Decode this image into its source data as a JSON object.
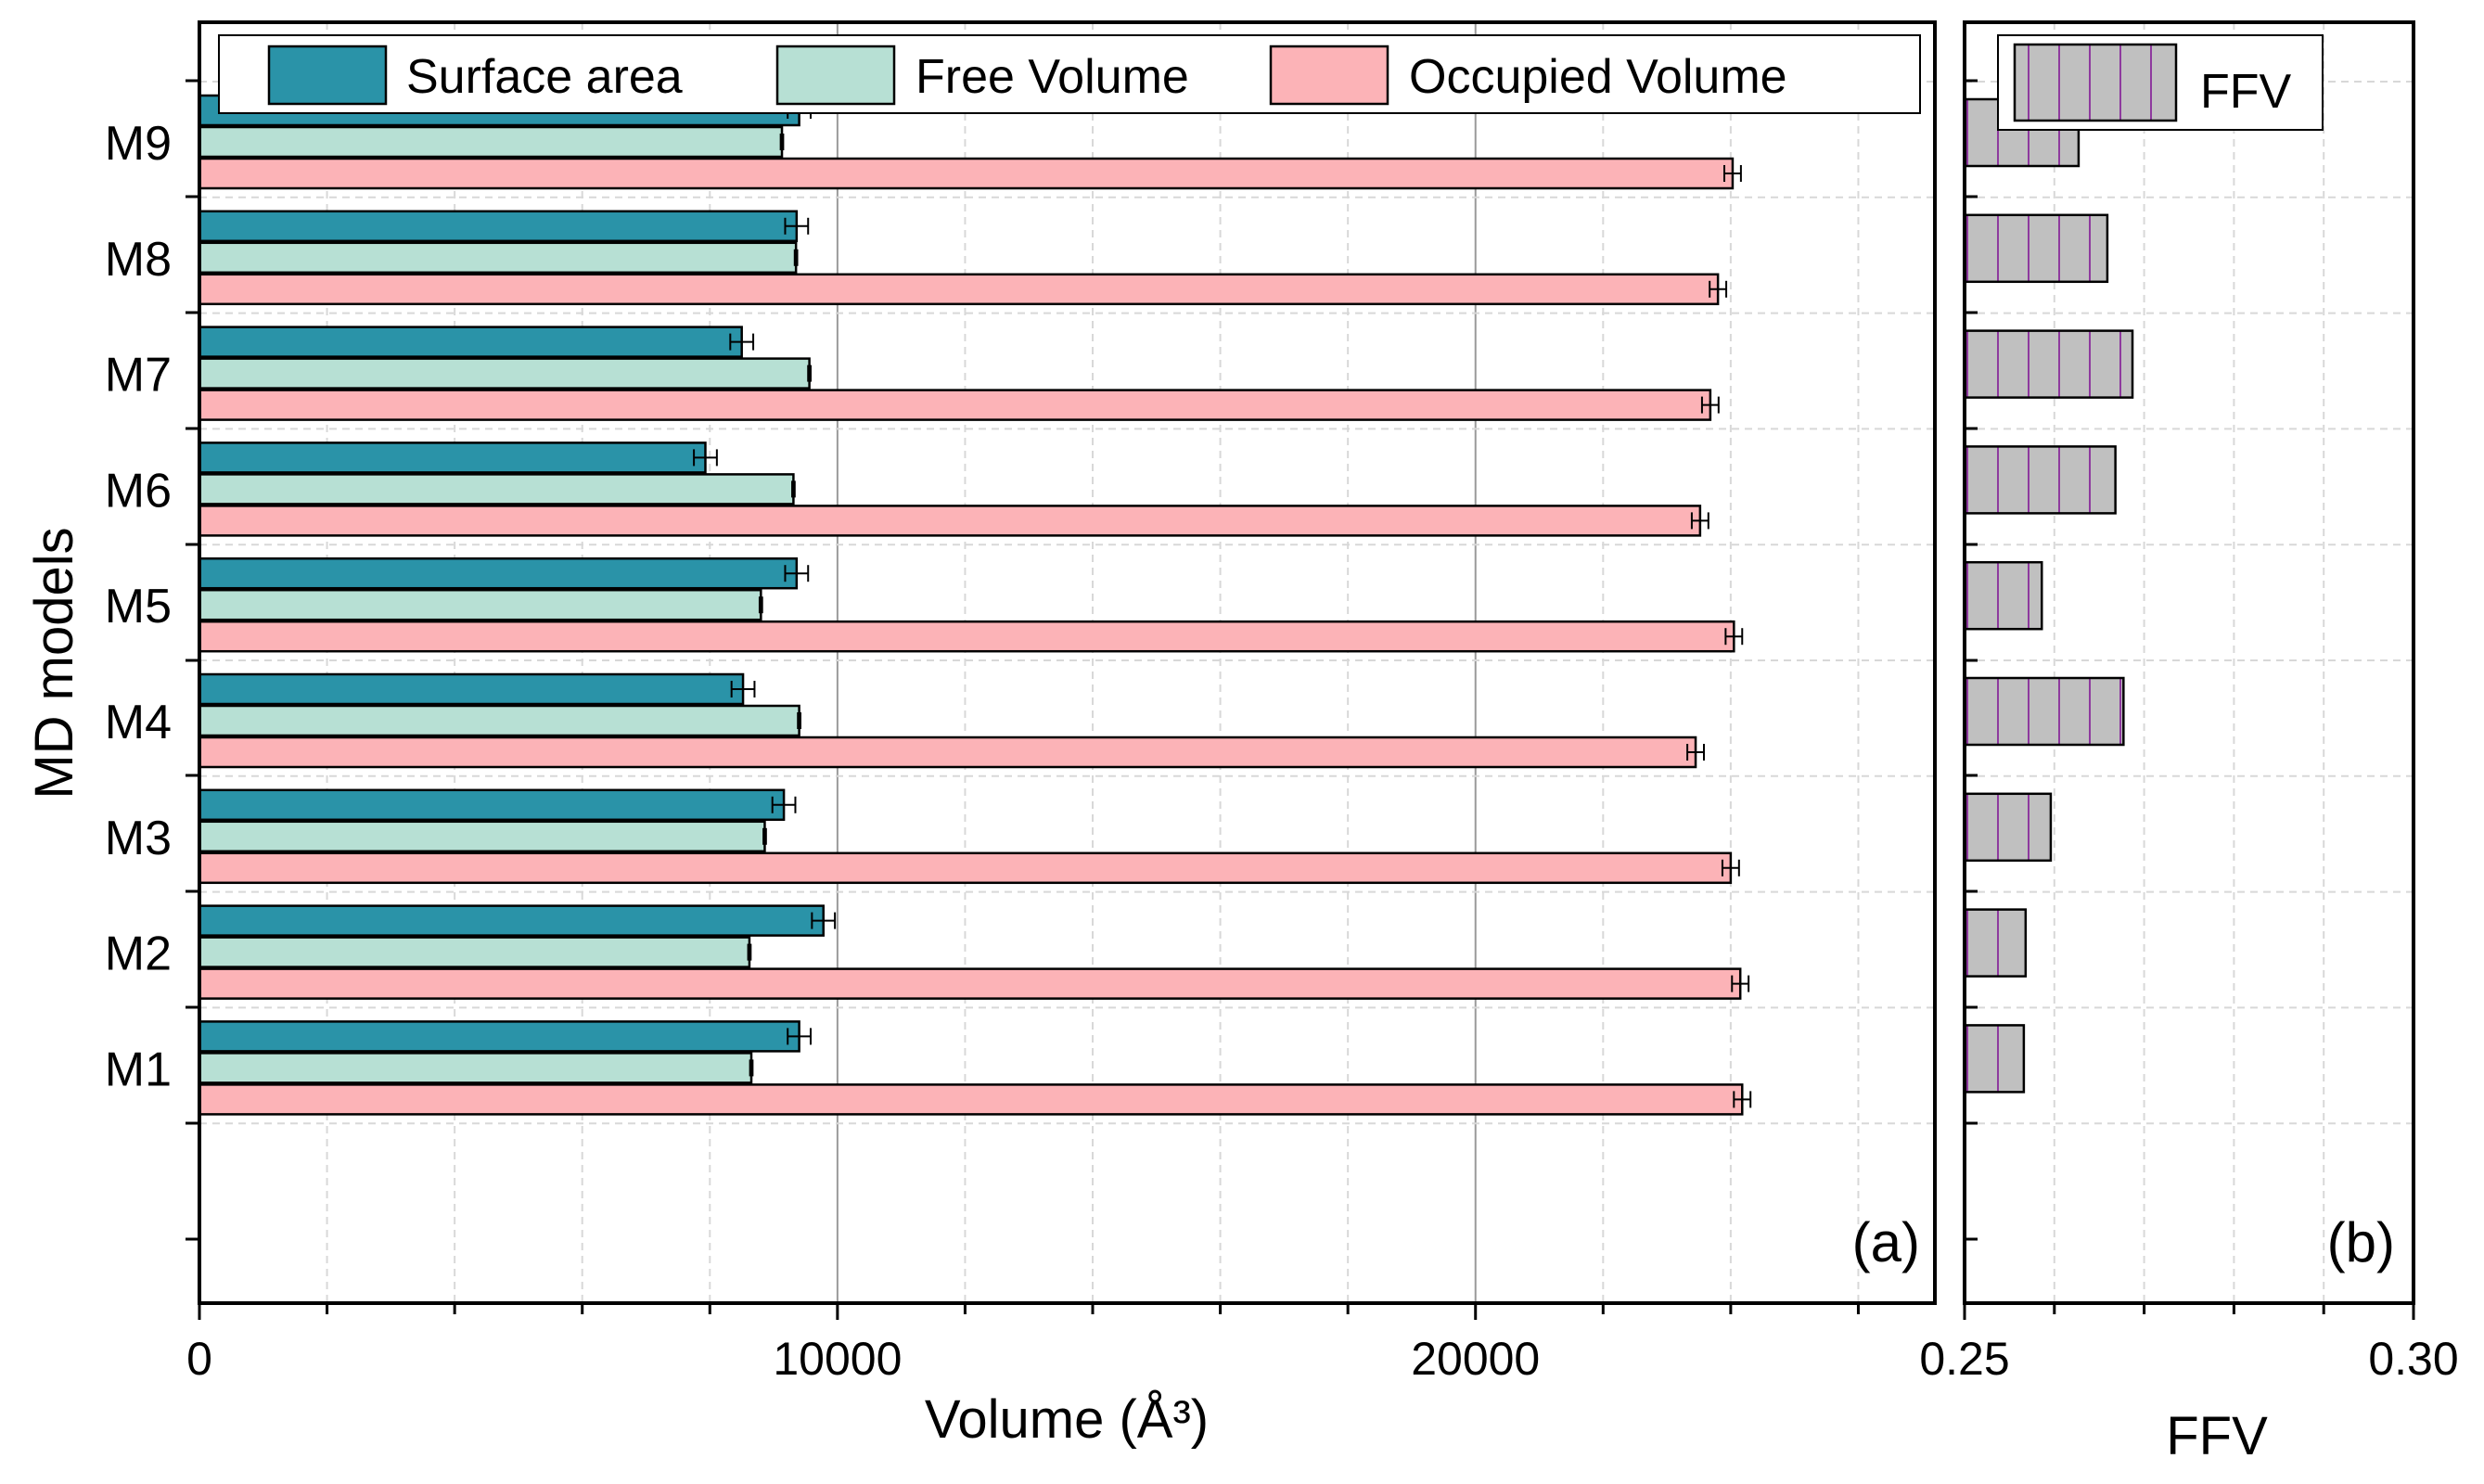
{
  "chart_data": [
    {
      "type": "bar",
      "orientation": "horizontal",
      "panel_label": "(a)",
      "categories": [
        "M1",
        "M2",
        "M3",
        "M4",
        "M5",
        "M6",
        "M7",
        "M8",
        "M9"
      ],
      "series": [
        {
          "name": "Surface area",
          "color": "#2a93a8",
          "values": [
            9400,
            9780,
            9160,
            8520,
            9360,
            7930,
            8500,
            9360,
            9400
          ],
          "errors": [
            180,
            180,
            180,
            180,
            180,
            180,
            180,
            180,
            180
          ]
        },
        {
          "name": "Free Volume",
          "color": "#b7e0d4",
          "values": [
            8650,
            8620,
            8860,
            9400,
            8800,
            9310,
            9560,
            9350,
            9130
          ],
          "errors": [
            20,
            20,
            20,
            20,
            20,
            20,
            20,
            20,
            20
          ]
        },
        {
          "name": "Occupied Volume",
          "color": "#fcb3b7",
          "values": [
            24180,
            24150,
            24000,
            23450,
            24050,
            23520,
            23680,
            23800,
            24030
          ],
          "errors": [
            130,
            130,
            130,
            130,
            130,
            130,
            130,
            130,
            130
          ]
        }
      ],
      "xlabel": "Volume (Å³)",
      "ylabel": "MD models",
      "xlim": [
        0,
        27200
      ],
      "xticks": [
        0,
        10000,
        20000
      ],
      "xtick_labels": [
        "0",
        "10000",
        "20000"
      ],
      "grid": true,
      "legend_position": "top"
    },
    {
      "type": "bar",
      "orientation": "horizontal",
      "panel_label": "(b)",
      "categories": [
        "M1",
        "M2",
        "M3",
        "M4",
        "M5",
        "M6",
        "M7",
        "M8",
        "M9"
      ],
      "series": [
        {
          "name": "FFV",
          "color": "#c0c0c0",
          "hatch_color": "#8e3a9e",
          "values": [
            0.2566,
            0.2568,
            0.2596,
            0.2677,
            0.2586,
            0.2668,
            0.2687,
            0.2659,
            0.2627
          ]
        }
      ],
      "xlabel": "FFV",
      "xlim": [
        0.25,
        0.3
      ],
      "xticks": [
        0.25,
        0.3
      ],
      "xtick_labels": [
        "0.25",
        "0.30"
      ],
      "grid": true,
      "legend_position": "top-left"
    }
  ]
}
